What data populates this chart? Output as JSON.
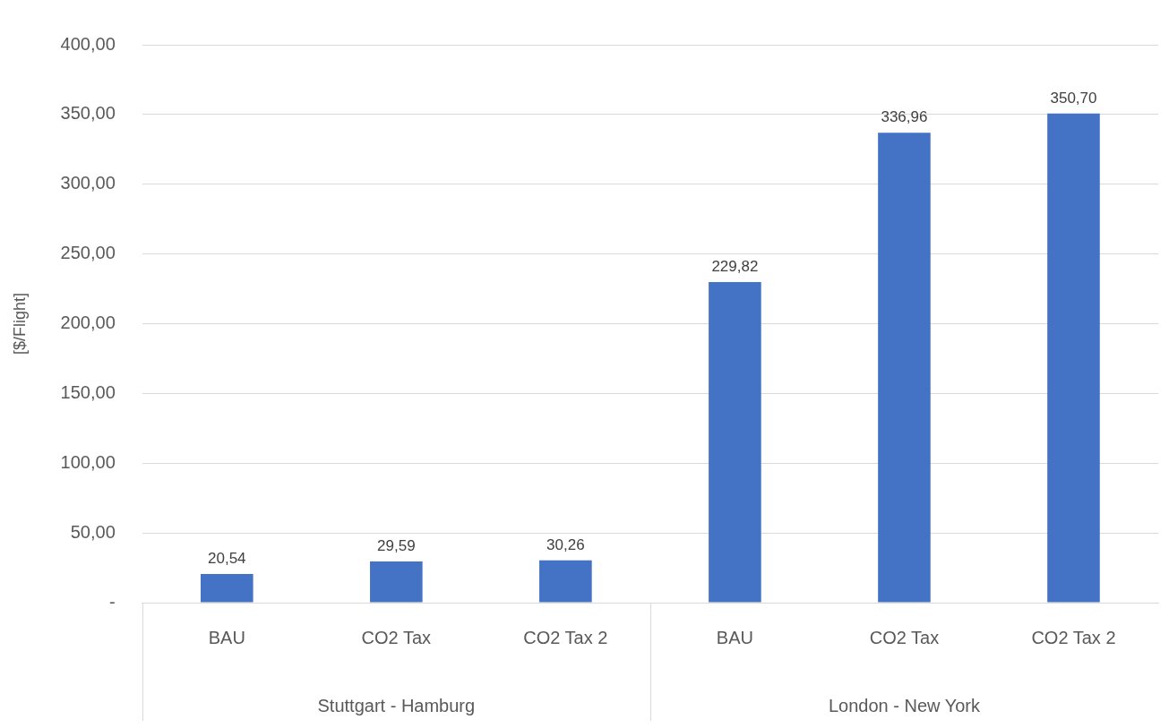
{
  "chart_data": {
    "type": "bar",
    "ylabel": "[$/Flight]",
    "categories": [
      "BAU",
      "CO2 Tax",
      "CO2 Tax 2",
      "BAU",
      "CO2 Tax",
      "CO2 Tax 2"
    ],
    "values": [
      20.54,
      29.59,
      30.26,
      229.82,
      336.96,
      350.7
    ],
    "value_labels": [
      "20,54",
      "29,59",
      "30,26",
      "229,82",
      "336,96",
      "350,70"
    ],
    "color": "#4472c4",
    "ylim": [
      0,
      400
    ],
    "yticks": [
      {
        "value": 0,
        "label": "-"
      },
      {
        "value": 50,
        "label": "50,00"
      },
      {
        "value": 100,
        "label": "100,00"
      },
      {
        "value": 150,
        "label": "150,00"
      },
      {
        "value": 200,
        "label": "200,00"
      },
      {
        "value": 250,
        "label": "250,00"
      },
      {
        "value": 300,
        "label": "300,00"
      },
      {
        "value": 350,
        "label": "350,00"
      },
      {
        "value": 400,
        "label": "400,00"
      }
    ],
    "grid": "y",
    "legend": false,
    "annotations": [
      "Stuttgart - Hamburg",
      "London - New York"
    ]
  }
}
